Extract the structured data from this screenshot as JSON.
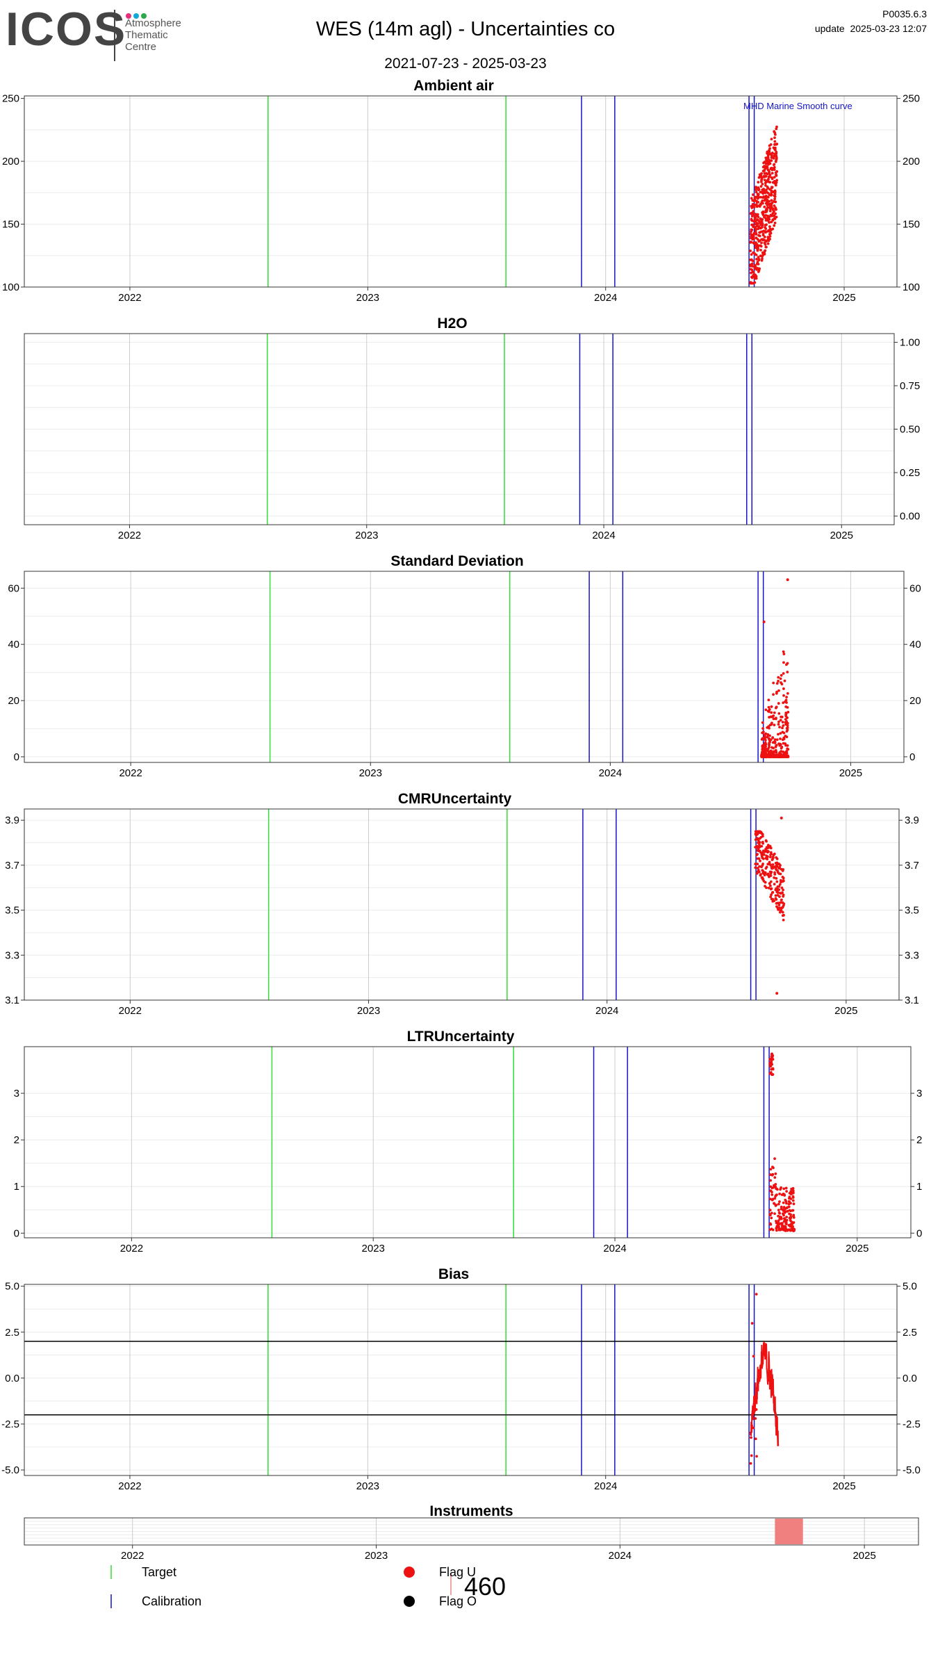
{
  "header": {
    "logo_text": "ICOS",
    "logo_subtitle": "Atmosphere\nThematic\nCentre",
    "title": "WES  (14m agl) - Uncertainties co",
    "date_range": "2021-07-23 - 2025-03-23",
    "version": "P0035.6.3",
    "update": "update  2025-03-23 12:07"
  },
  "colors": {
    "target": "#33dd33",
    "calibration": "#1414c8",
    "flag_u": "#ee1111",
    "flag_o": "#000000",
    "instrument": "#f08080",
    "grid_major": "#cccccc",
    "grid_minor": "#ececec"
  },
  "chart_data": [
    {
      "type": "scatter",
      "title": "Ambient air",
      "xlim": [
        "2021-07-23",
        "2025-03-23"
      ],
      "x_ticks": [
        "2022",
        "2023",
        "2024",
        "2025"
      ],
      "ylim": [
        100,
        252
      ],
      "y_ticks": [
        100,
        150,
        200,
        250
      ],
      "y_tick_labels": [
        "100",
        "150",
        "200",
        "250"
      ],
      "annotation": "MHD Marine Smooth curve",
      "points_window": [
        "2024-08-10",
        "2024-09-20"
      ],
      "points_range": [
        103,
        241
      ]
    },
    {
      "type": "scatter",
      "title": "H2O",
      "xlim": [
        "2021-07-23",
        "2025-03-23"
      ],
      "x_ticks": [
        "2022",
        "2023",
        "2024",
        "2025"
      ],
      "ylim": [
        -0.05,
        1.05
      ],
      "y_ticks": [
        0,
        0.25,
        0.5,
        0.75,
        1
      ],
      "y_tick_labels": [
        "0.00",
        "0.25",
        "0.50",
        "0.75",
        "1.00"
      ],
      "right_axis_only": true
    },
    {
      "type": "scatter",
      "title": "Standard Deviation",
      "xlim": [
        "2021-07-23",
        "2025-03-23"
      ],
      "x_ticks": [
        "2022",
        "2023",
        "2024",
        "2025"
      ],
      "ylim": [
        -2,
        66
      ],
      "y_ticks": [
        0,
        20,
        40,
        60
      ],
      "y_tick_labels": [
        "0",
        "20",
        "40",
        "60"
      ],
      "points_window": [
        "2024-08-18",
        "2024-09-28"
      ],
      "points_range": [
        0,
        38
      ],
      "outliers": [
        {
          "x": "2024-08-22",
          "y": 48
        },
        {
          "x": "2024-09-27",
          "y": 63
        }
      ]
    },
    {
      "type": "scatter",
      "title": "CMRUncertainty",
      "xlim": [
        "2021-07-23",
        "2025-03-23"
      ],
      "x_ticks": [
        "2022",
        "2023",
        "2024",
        "2025"
      ],
      "ylim": [
        3.1,
        3.95
      ],
      "y_ticks": [
        3.1,
        3.3,
        3.5,
        3.7,
        3.9
      ],
      "y_tick_labels": [
        "3.1",
        "3.3",
        "3.5",
        "3.7",
        "3.9"
      ],
      "points_window": [
        "2024-08-15",
        "2024-09-28"
      ],
      "points_range": [
        3.44,
        3.85
      ],
      "outliers": [
        {
          "x": "2024-09-24",
          "y": 3.91
        },
        {
          "x": "2024-09-17",
          "y": 3.13
        }
      ]
    },
    {
      "type": "scatter",
      "title": "LTRUncertainty",
      "xlim": [
        "2021-07-23",
        "2025-03-23"
      ],
      "x_ticks": [
        "2022",
        "2023",
        "2024",
        "2025"
      ],
      "ylim": [
        -0.1,
        4.0
      ],
      "y_ticks": [
        0,
        1,
        2,
        3
      ],
      "y_tick_labels": [
        "0",
        "1",
        "2",
        "3"
      ],
      "cluster_high": {
        "window": [
          "2024-08-22",
          "2024-08-27"
        ],
        "range": [
          3.4,
          3.85
        ]
      },
      "points_window": [
        "2024-08-22",
        "2024-09-28"
      ],
      "points_range": [
        0.05,
        1.8
      ]
    },
    {
      "type": "line",
      "title": "Bias",
      "xlim": [
        "2021-07-23",
        "2025-03-23"
      ],
      "x_ticks": [
        "2022",
        "2023",
        "2024",
        "2025"
      ],
      "ylim": [
        -5.3,
        5.1
      ],
      "y_ticks": [
        -5,
        -2.5,
        0,
        2.5,
        5
      ],
      "y_tick_labels": [
        "-5.0",
        "-2.5",
        "0.0",
        "2.5",
        "5.0"
      ],
      "hlines": [
        2,
        -2
      ],
      "points_window": [
        "2024-08-10",
        "2024-09-22"
      ],
      "points_range": [
        -4.8,
        4.6
      ]
    },
    {
      "type": "bar",
      "title": "Instruments",
      "xlim": [
        "2021-07-23",
        "2025-03-23"
      ],
      "x_ticks": [
        "2022",
        "2023",
        "2024",
        "2025"
      ],
      "spans": [
        {
          "start": "2024-08-20",
          "end": "2024-10-01",
          "label": "460"
        }
      ]
    }
  ],
  "events": {
    "target": [
      "2022-08-01",
      "2023-08-01"
    ],
    "calibration": [
      "2023-11-25",
      "2024-01-15",
      "2024-08-08",
      "2024-08-16"
    ],
    "calibration_std_shift": [
      "2023-11-30",
      "2024-01-20",
      "2024-08-13",
      "2024-08-21"
    ]
  },
  "legend": {
    "instrument_value": "460",
    "target_label": "Target",
    "calibration_label": "Calibration",
    "flag_u_label": "Flag U",
    "flag_o_label": "Flag O"
  }
}
